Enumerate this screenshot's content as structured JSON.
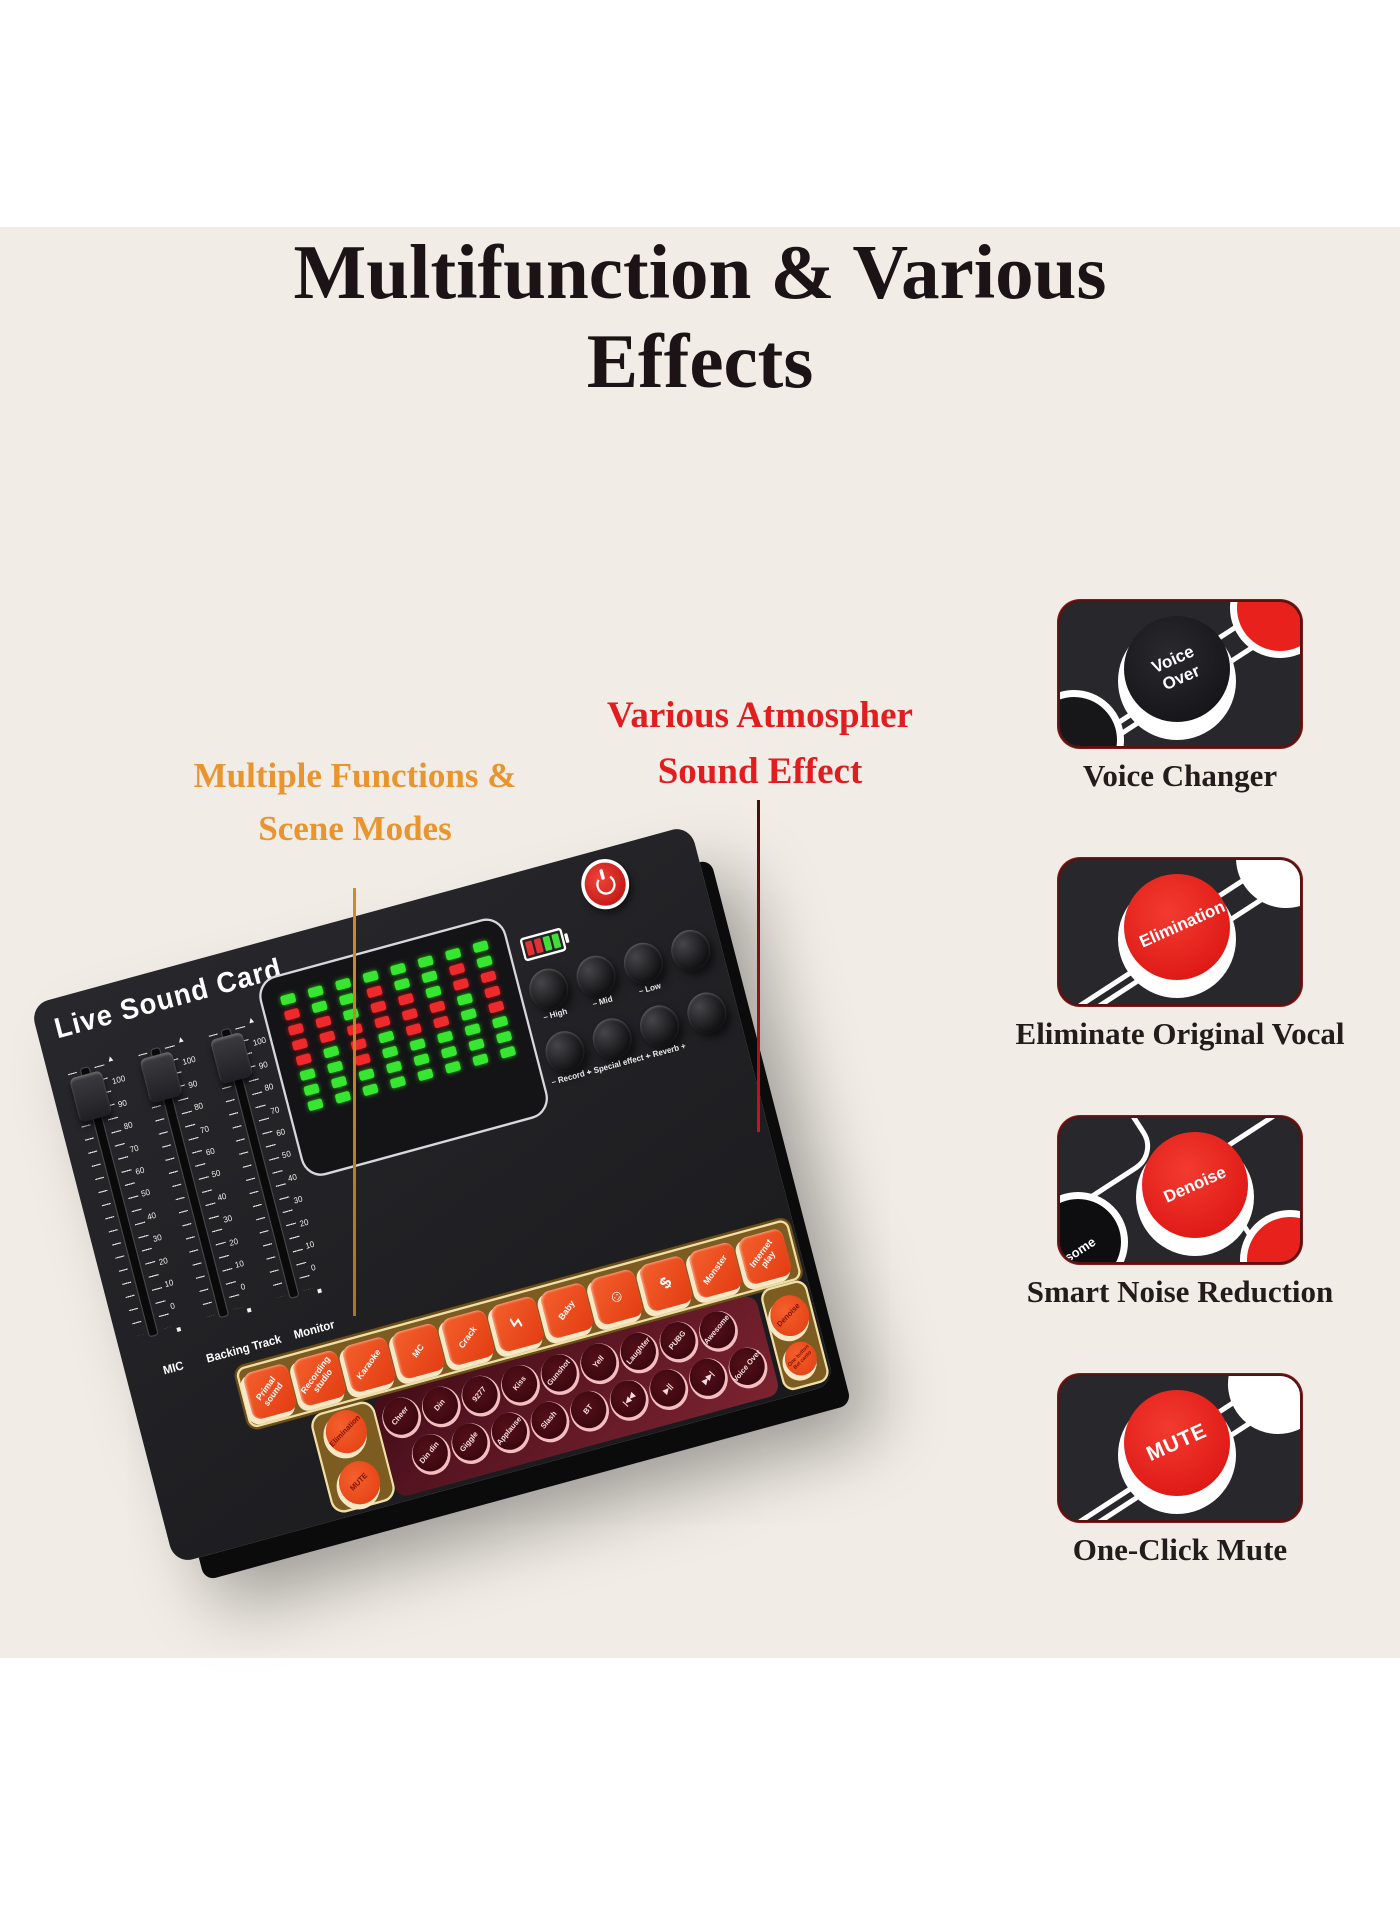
{
  "page": {
    "background": "#ffffff",
    "band_background": "#f1ece5"
  },
  "colors": {
    "accent_orange": "#e8942f",
    "accent_red": "#e11d1f",
    "button_orange": "#ee4a1c",
    "button_red": "#e8211c",
    "led_green": "#37e631",
    "led_red": "#ef2a2d",
    "gold_panel": "#7c5c20",
    "maroon_panel": "#5a1420",
    "pink_rim": "#f4bec1"
  },
  "title": {
    "line1": "Multifunction & Various",
    "line2": "Effects"
  },
  "annotations": {
    "orange": {
      "line1": "Multiple Functions &",
      "line2": "Scene Modes"
    },
    "red": {
      "line1": "Various Atmospher",
      "line2": "Sound Effect"
    }
  },
  "features": [
    {
      "caption": "Voice Changer",
      "button_label": "Voice Over"
    },
    {
      "caption": "Eliminate Original Vocal",
      "button_label": "Elimination"
    },
    {
      "caption": "Smart Noise Reduction",
      "button_label": "Denoise",
      "corner_label": "some"
    },
    {
      "caption": "One-Click Mute",
      "button_label": "MUTE"
    }
  ],
  "device": {
    "brand": "Live Sound Card",
    "fader_scale": [
      "▲",
      "100",
      "90",
      "80",
      "70",
      "60",
      "50",
      "40",
      "30",
      "20",
      "10",
      "0",
      "■"
    ],
    "faders": [
      {
        "label": "MIC"
      },
      {
        "label": "Backing Track"
      },
      {
        "label": "Monitor"
      }
    ],
    "battery": [
      "r",
      "r",
      "g",
      "g"
    ],
    "knob_rows": [
      {
        "knobs": [
          {
            "label": "– High"
          },
          {
            "label": "– Mid"
          },
          {
            "label": "– Low"
          },
          {
            "label": ""
          }
        ]
      },
      {
        "knobs": [
          {
            "label": "– Record +"
          },
          {
            "label": "– Special effect +"
          },
          {
            "label": "– Reverb +"
          },
          {
            "label": ""
          }
        ]
      }
    ],
    "square_buttons": [
      {
        "label": "Primal sound"
      },
      {
        "label": "Recording studio"
      },
      {
        "label": "Karaoke"
      },
      {
        "label": "MC"
      },
      {
        "label": "Crack"
      },
      {
        "label": "ϟ",
        "icon": "lightning-icon"
      },
      {
        "label": "Baby"
      },
      {
        "label": "☺",
        "icon": "face-icon"
      },
      {
        "label": "$",
        "icon": "dollar-icon"
      },
      {
        "label": "Monster"
      },
      {
        "label": "Internet play"
      }
    ],
    "round_rows": [
      {
        "buttons": [
          {
            "label": "Cheer"
          },
          {
            "label": "Din"
          },
          {
            "label": "9277"
          },
          {
            "label": "Kiss"
          },
          {
            "label": "Gunshot"
          },
          {
            "label": "Yell"
          },
          {
            "label": "Laughter"
          },
          {
            "label": "PUBG"
          },
          {
            "label": "Awesome"
          }
        ]
      },
      {
        "buttons": [
          {
            "label": "Din din"
          },
          {
            "label": "Giggle"
          },
          {
            "label": "Applause"
          },
          {
            "label": "Slash"
          },
          {
            "label": "BT"
          },
          {
            "label": "|◀◀",
            "icon": "rewind-icon"
          },
          {
            "label": "▶||",
            "icon": "play-pause-icon"
          },
          {
            "label": "▶▶|",
            "icon": "fast-forward-icon"
          },
          {
            "label": "Voice Over"
          }
        ]
      }
    ],
    "left_box": {
      "buttons": [
        {
          "label": "Elimination"
        },
        {
          "label": "MUTE"
        }
      ]
    },
    "right_box": {
      "buttons": [
        {
          "label": "Denoise"
        },
        {
          "label": "One button Bel canto"
        }
      ]
    },
    "led_columns": [
      {
        "segs": [
          "g",
          "r",
          "r",
          "r",
          "r",
          "g",
          "g",
          "g"
        ]
      },
      {
        "segs": [
          "g",
          "g",
          "r",
          "r",
          "g",
          "g",
          "g",
          "g"
        ]
      },
      {
        "segs": [
          "g",
          "g",
          "g",
          "r",
          "r",
          "r",
          "g",
          "g"
        ]
      },
      {
        "segs": [
          "g",
          "r",
          "r",
          "r",
          "g",
          "g",
          "g",
          "g"
        ]
      },
      {
        "segs": [
          "g",
          "g",
          "r",
          "r",
          "r",
          "g",
          "g",
          "g"
        ]
      },
      {
        "segs": [
          "g",
          "g",
          "g",
          "r",
          "r",
          "g",
          "g",
          "g"
        ]
      },
      {
        "segs": [
          "g",
          "r",
          "r",
          "g",
          "g",
          "g",
          "g",
          "g"
        ]
      },
      {
        "segs": [
          "g",
          "g",
          "r",
          "r",
          "r",
          "g",
          "g",
          "g"
        ]
      }
    ]
  }
}
